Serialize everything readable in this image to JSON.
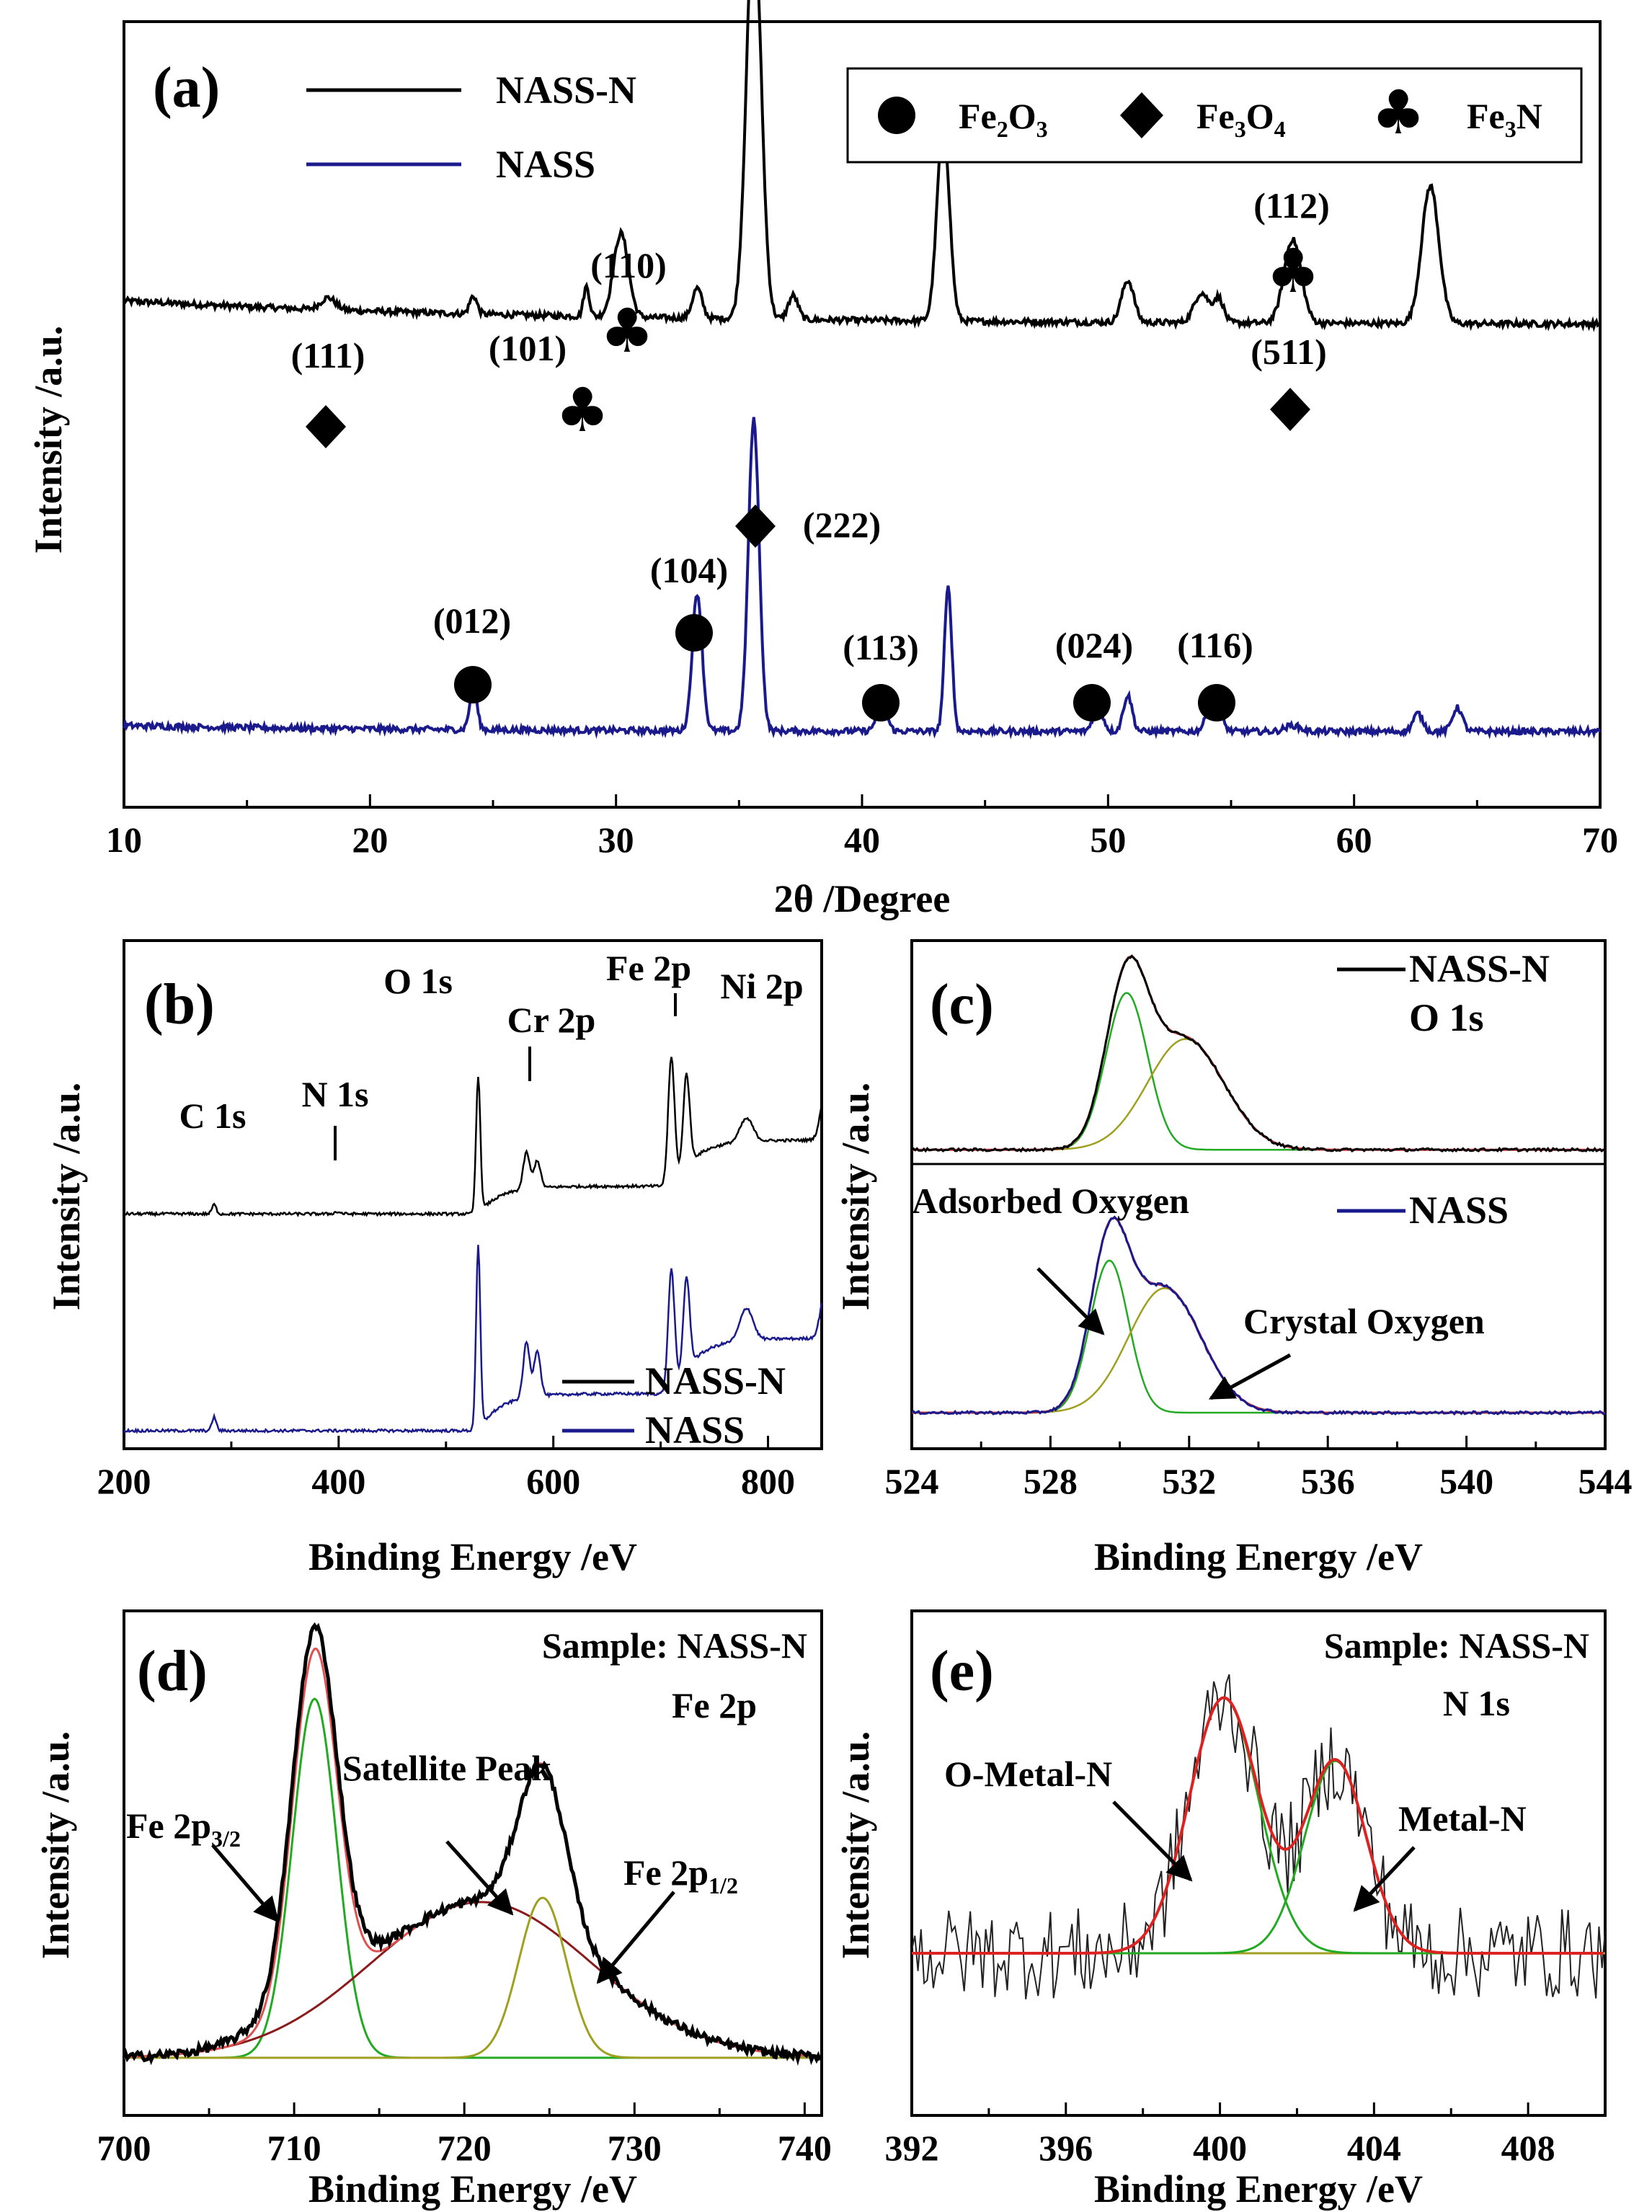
{
  "chart_data": [
    {
      "panel": "(a)",
      "type": "line",
      "xlabel": "2θ /Degree",
      "ylabel": "Intensity /a.u.",
      "xlim": [
        10,
        70
      ],
      "xticks": [
        "10",
        "20",
        "30",
        "40",
        "50",
        "60",
        "70"
      ],
      "series": [
        {
          "name": "NASS-N",
          "color": "#000000",
          "baseline": 0.67,
          "peaks": [
            [
              18.3,
              0.02,
              0.3
            ],
            [
              24.2,
              0.03,
              0.15
            ],
            [
              28.8,
              0.05,
              0.12
            ],
            [
              30.2,
              0.14,
              0.3
            ],
            [
              33.3,
              0.05,
              0.2
            ],
            [
              35.6,
              0.68,
              0.3
            ],
            [
              37.2,
              0.04,
              0.2
            ],
            [
              43.3,
              0.33,
              0.25
            ],
            [
              50.8,
              0.07,
              0.25
            ],
            [
              53.8,
              0.05,
              0.3
            ],
            [
              54.5,
              0.04,
              0.2
            ],
            [
              57.5,
              0.14,
              0.35
            ],
            [
              63.1,
              0.23,
              0.35
            ]
          ]
        },
        {
          "name": "NASS",
          "color": "#1a1a8c",
          "baseline": 0.0,
          "peaks": [
            [
              24.2,
              0.07,
              0.15
            ],
            [
              33.3,
              0.23,
              0.2
            ],
            [
              35.6,
              0.52,
              0.22
            ],
            [
              40.8,
              0.05,
              0.2
            ],
            [
              43.5,
              0.24,
              0.15
            ],
            [
              49.6,
              0.04,
              0.2
            ],
            [
              50.8,
              0.06,
              0.18
            ],
            [
              54.3,
              0.06,
              0.25
            ],
            [
              57.5,
              0.01,
              0.3
            ],
            [
              62.6,
              0.03,
              0.2
            ],
            [
              64.2,
              0.04,
              0.2
            ]
          ]
        }
      ],
      "legend": [
        "NASS-N",
        "NASS"
      ],
      "phase_legend": [
        {
          "symbol": "circle",
          "label": "Fe",
          "sub1": "2",
          "mid": "O",
          "sub2": "3"
        },
        {
          "symbol": "diamond",
          "label": "Fe",
          "sub1": "3",
          "mid": "O",
          "sub2": "4"
        },
        {
          "symbol": "club",
          "label": "Fe",
          "sub1": "3",
          "mid": "N",
          "sub2": ""
        }
      ],
      "annotations": [
        {
          "hkl": "(111)",
          "symbol": "diamond",
          "x": 18.3
        },
        {
          "hkl": "(101)",
          "symbol": "club",
          "x": 28.8
        },
        {
          "hkl": "(110)",
          "symbol": "club",
          "x": 30.2
        },
        {
          "hkl": "(112)",
          "symbol": "club",
          "x": 57.5
        },
        {
          "hkl": "(511)",
          "symbol": "diamond",
          "x": 57.5
        },
        {
          "hkl": "(222)",
          "symbol": "diamond",
          "x": 35.6
        },
        {
          "hkl": "(104)",
          "symbol": "circle",
          "x": 33.3
        },
        {
          "hkl": "(012)",
          "symbol": "circle",
          "x": 24.2
        },
        {
          "hkl": "(113)",
          "symbol": "circle",
          "x": 40.8
        },
        {
          "hkl": "(024)",
          "symbol": "circle",
          "x": 49.6
        },
        {
          "hkl": "(116)",
          "symbol": "circle",
          "x": 54.3
        }
      ]
    },
    {
      "panel": "(b)",
      "type": "line",
      "xlabel": "Binding Energy /eV",
      "ylabel": "Intensity /a.u.",
      "xlim": [
        200,
        850
      ],
      "xticks": [
        "200",
        "400",
        "600",
        "800"
      ],
      "peak_labels": [
        "C 1s",
        "N 1s",
        "O 1s",
        "Cr 2p",
        "Fe 2p",
        "Ni 2p"
      ],
      "legend": [
        "NASS-N",
        "NASS"
      ],
      "series": [
        {
          "name": "NASS-N",
          "color": "#000000",
          "offset": 0.47,
          "peaks": [
            [
              284,
              0.02,
              2
            ],
            [
              399,
              0.004,
              3
            ],
            [
              530,
              0.3,
              2
            ],
            [
              575,
              0.08,
              3
            ],
            [
              585,
              0.06,
              3
            ],
            [
              710,
              0.28,
              3
            ],
            [
              724,
              0.2,
              3
            ],
            [
              780,
              0.05,
              6
            ],
            [
              855,
              0.13,
              5
            ]
          ],
          "steps": [
            [
              530,
              0.06
            ],
            [
              712,
              0.1
            ]
          ]
        },
        {
          "name": "NASS",
          "color": "#1a1a8c",
          "offset": 0.0,
          "peaks": [
            [
              284,
              0.03,
              2
            ],
            [
              530,
              0.4,
              2
            ],
            [
              575,
              0.12,
              3
            ],
            [
              585,
              0.1,
              3
            ],
            [
              710,
              0.27,
              3
            ],
            [
              724,
              0.2,
              3
            ],
            [
              780,
              0.07,
              6
            ],
            [
              855,
              0.13,
              5
            ]
          ],
          "steps": [
            [
              530,
              0.08
            ],
            [
              712,
              0.12
            ]
          ]
        }
      ]
    },
    {
      "panel": "(c)",
      "type": "line",
      "xlabel": "Binding Energy /eV",
      "ylabel": "Intensity /a.u.",
      "xlim": [
        524,
        544
      ],
      "xticks": [
        "524",
        "528",
        "532",
        "536",
        "540",
        "544"
      ],
      "labels": {
        "top_legend": "NASS-N",
        "top_sub": "O 1s",
        "bottom_legend": "NASS",
        "adsorbed": "Adsorbed Oxygen",
        "crystal": "Crystal Oxygen"
      },
      "series": [
        {
          "name": "NASS-N",
          "color": "#000000",
          "offset": 0.57,
          "components": [
            [
              530.2,
              0.34,
              0.6
            ],
            [
              531.9,
              0.24,
              1.1
            ]
          ]
        },
        {
          "name": "NASS",
          "color": "#1a1a8c",
          "offset": 0.0,
          "components": [
            [
              529.7,
              0.33,
              0.55
            ],
            [
              531.3,
              0.27,
              1.05
            ]
          ]
        }
      ]
    },
    {
      "panel": "(d)",
      "type": "line",
      "xlabel": "Binding Energy /eV",
      "ylabel": "Intensity /a.u.",
      "xlim": [
        700,
        741
      ],
      "xticks": [
        "700",
        "710",
        "720",
        "730",
        "740"
      ],
      "labels": {
        "sample": "Sample: NASS-N",
        "line": "Fe 2p",
        "satellite": "Satellite Peak",
        "p32": "Fe 2p",
        "p32sub": "3/2",
        "p12": "Fe 2p",
        "p12sub": "1/2"
      },
      "components": [
        {
          "name": "Fe 2p3/2",
          "center": 711.2,
          "amp": 0.83,
          "sigma": 1.3,
          "color": "#22aa22"
        },
        {
          "name": "Satellite Peak",
          "center": 721.0,
          "amp": 0.36,
          "sigma": 6.5,
          "color": "#8b1a1a"
        },
        {
          "name": "Fe 2p1/2",
          "center": 724.6,
          "amp": 0.37,
          "sigma": 1.4,
          "color": "#a0a020"
        }
      ]
    },
    {
      "panel": "(e)",
      "type": "line",
      "xlabel": "Binding Energy /eV",
      "ylabel": "Intensity /a.u.",
      "xlim": [
        392,
        410
      ],
      "xticks": [
        "392",
        "396",
        "400",
        "404",
        "408"
      ],
      "labels": {
        "sample": "Sample: NASS-N",
        "line": "N 1s",
        "omn": "O-Metal-N",
        "mn": "Metal-N"
      },
      "components": [
        {
          "name": "O-Metal-N",
          "center": 400.1,
          "amp": 0.77,
          "sigma": 0.9,
          "color": "#22aa22"
        },
        {
          "name": "Metal-N",
          "center": 403.0,
          "amp": 0.58,
          "sigma": 0.8,
          "color": "#22aa22"
        }
      ]
    }
  ]
}
